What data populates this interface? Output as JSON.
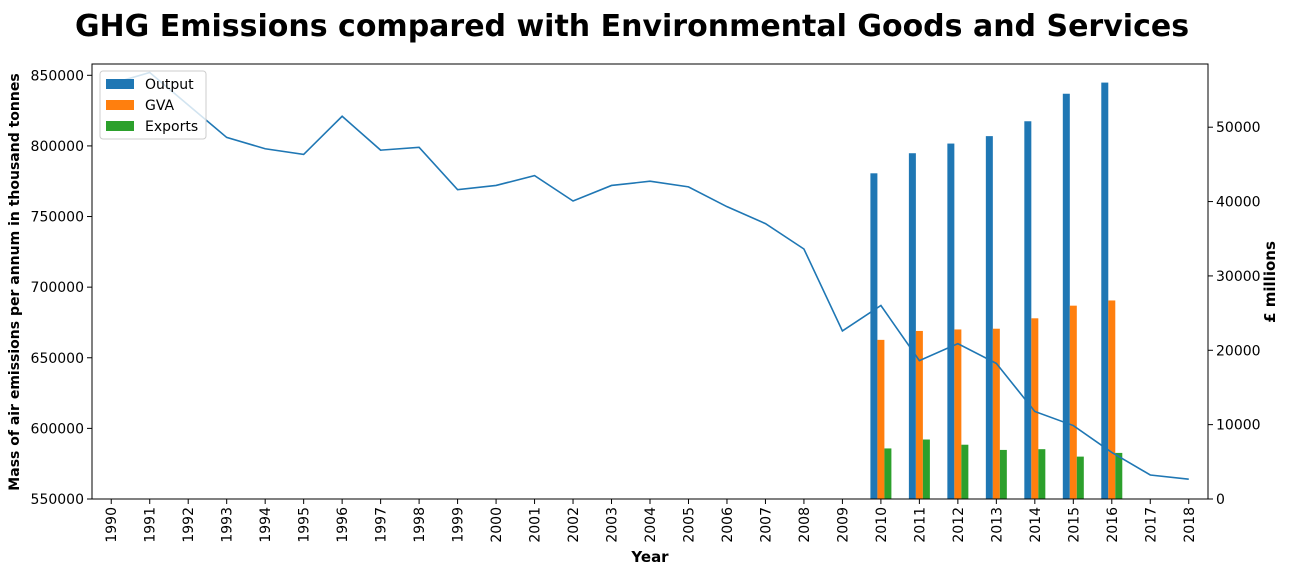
{
  "chart_data": {
    "type": "bar+line",
    "title": "GHG Emissions compared with Environmental Goods and Services",
    "xlabel": "Year",
    "ylabel_left": "Mass of air emissions per annum in thousand tonnes",
    "ylabel_right": "£ millions",
    "categories": [
      "1990",
      "1991",
      "1992",
      "1993",
      "1994",
      "1995",
      "1996",
      "1997",
      "1998",
      "1999",
      "2000",
      "2001",
      "2002",
      "2003",
      "2004",
      "2005",
      "2006",
      "2007",
      "2008",
      "2009",
      "2010",
      "2011",
      "2012",
      "2013",
      "2014",
      "2015",
      "2016",
      "2017",
      "2018"
    ],
    "ylim_left": [
      550000,
      858000
    ],
    "ylim_right": [
      0,
      58500
    ],
    "yticks_left": [
      "550000",
      "600000",
      "650000",
      "700000",
      "750000",
      "800000",
      "850000"
    ],
    "yticks_right": [
      "0",
      "10000",
      "20000",
      "30000",
      "40000",
      "50000"
    ],
    "line_series": {
      "axis": "left",
      "color": "#1f77b4",
      "values": [
        844000,
        852000,
        829000,
        806000,
        798000,
        794000,
        821000,
        797000,
        799000,
        769000,
        772000,
        779000,
        761000,
        772000,
        775000,
        771000,
        757000,
        745000,
        727000,
        669000,
        687000,
        648000,
        660000,
        646000,
        612000,
        602000,
        583000,
        567000,
        564000
      ]
    },
    "bar_series": [
      {
        "name": "Output",
        "color": "#1f77b4",
        "values": [
          null,
          null,
          null,
          null,
          null,
          null,
          null,
          null,
          null,
          null,
          null,
          null,
          null,
          null,
          null,
          null,
          null,
          null,
          null,
          null,
          43800,
          46500,
          47800,
          48800,
          50800,
          54500,
          56000,
          null,
          null
        ]
      },
      {
        "name": "GVA",
        "color": "#ff7f0e",
        "values": [
          null,
          null,
          null,
          null,
          null,
          null,
          null,
          null,
          null,
          null,
          null,
          null,
          null,
          null,
          null,
          null,
          null,
          null,
          null,
          null,
          21400,
          22600,
          22800,
          22900,
          24300,
          26000,
          26700,
          null,
          null
        ]
      },
      {
        "name": "Exports",
        "color": "#2ca02c",
        "values": [
          null,
          null,
          null,
          null,
          null,
          null,
          null,
          null,
          null,
          null,
          null,
          null,
          null,
          null,
          null,
          null,
          null,
          null,
          null,
          null,
          6800,
          8000,
          7300,
          6600,
          6700,
          5700,
          6200,
          null,
          null
        ]
      }
    ],
    "legend_position": "top-left",
    "grid": false
  }
}
